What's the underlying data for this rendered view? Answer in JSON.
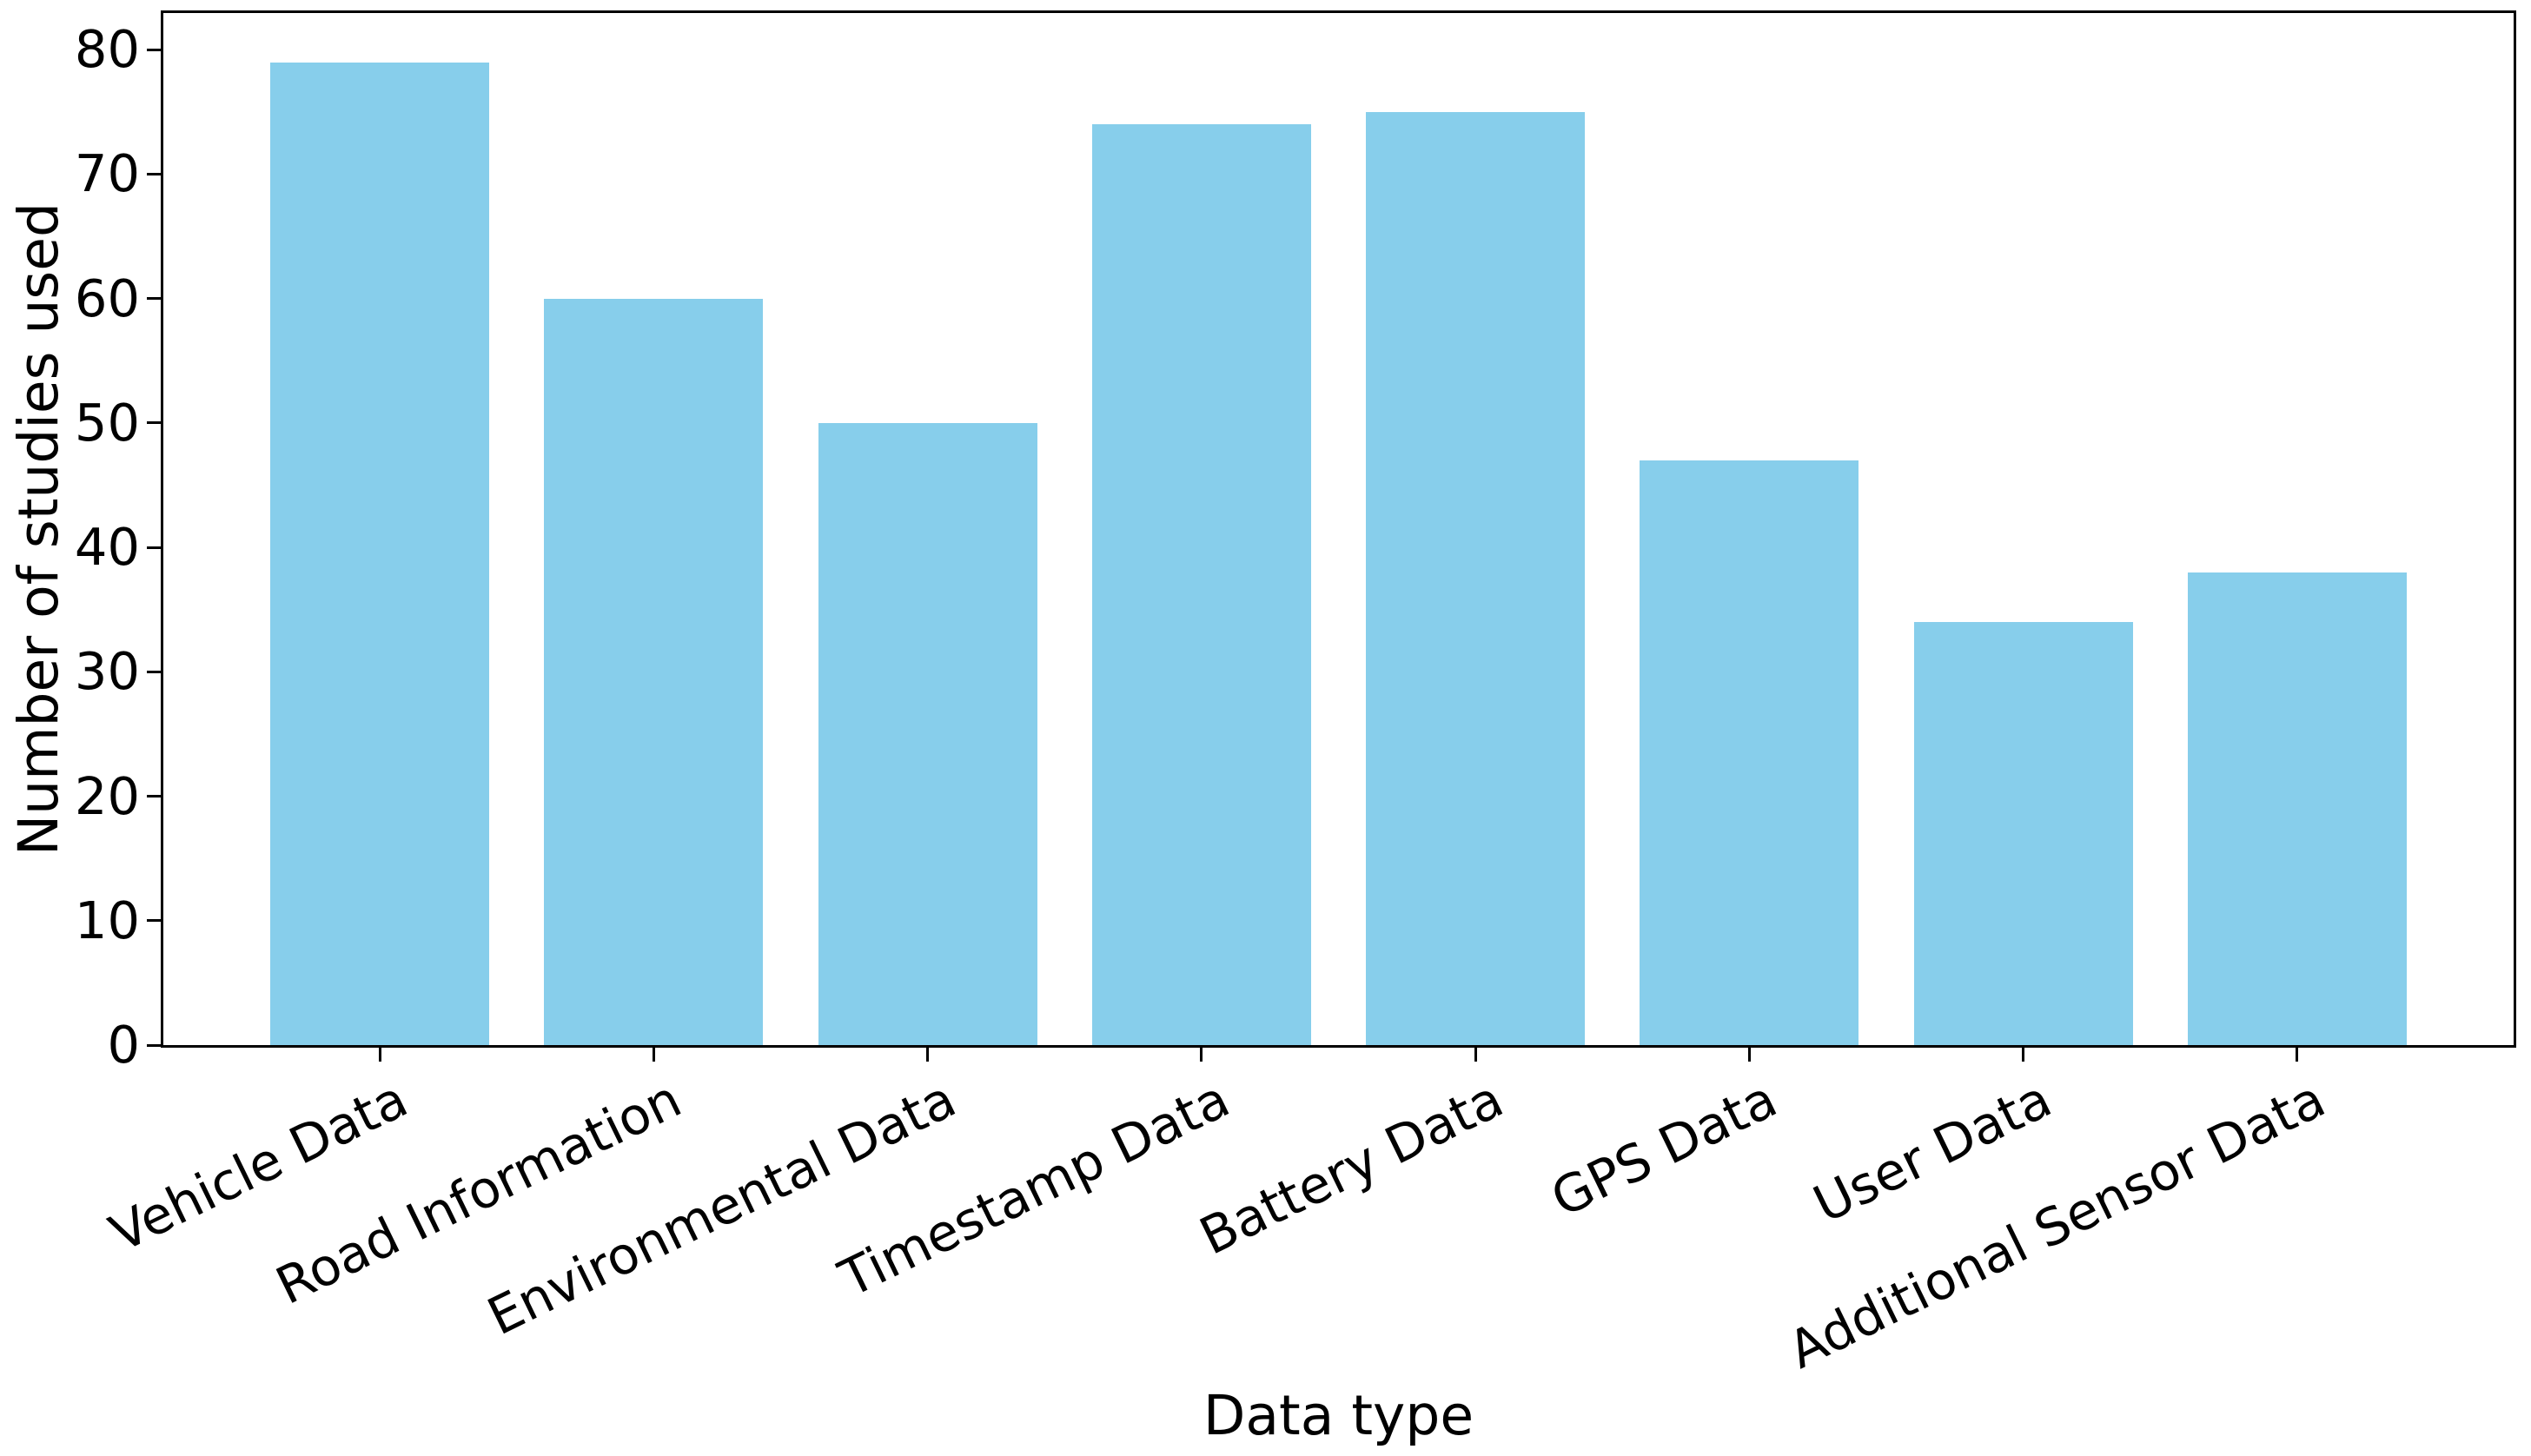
{
  "chart_data": {
    "type": "bar",
    "title": "",
    "categories": [
      "Vehicle Data",
      "Road Information",
      "Environmental Data",
      "Timestamp Data",
      "Battery Data",
      "GPS Data",
      "User Data",
      "Additional Sensor Data"
    ],
    "values": [
      79,
      60,
      50,
      74,
      75,
      47,
      34,
      38
    ],
    "xlabel": "Data type",
    "ylabel": "Number of studies used",
    "yticks": [
      0,
      10,
      20,
      30,
      40,
      50,
      60,
      70,
      80
    ],
    "ylim": [
      0,
      82.95
    ],
    "bar_color": "#87CEEB",
    "axis_color": "#000000",
    "background_color": "#FFFFFF",
    "grid": false,
    "legend": null,
    "tick_label_rotation_deg": 26
  }
}
